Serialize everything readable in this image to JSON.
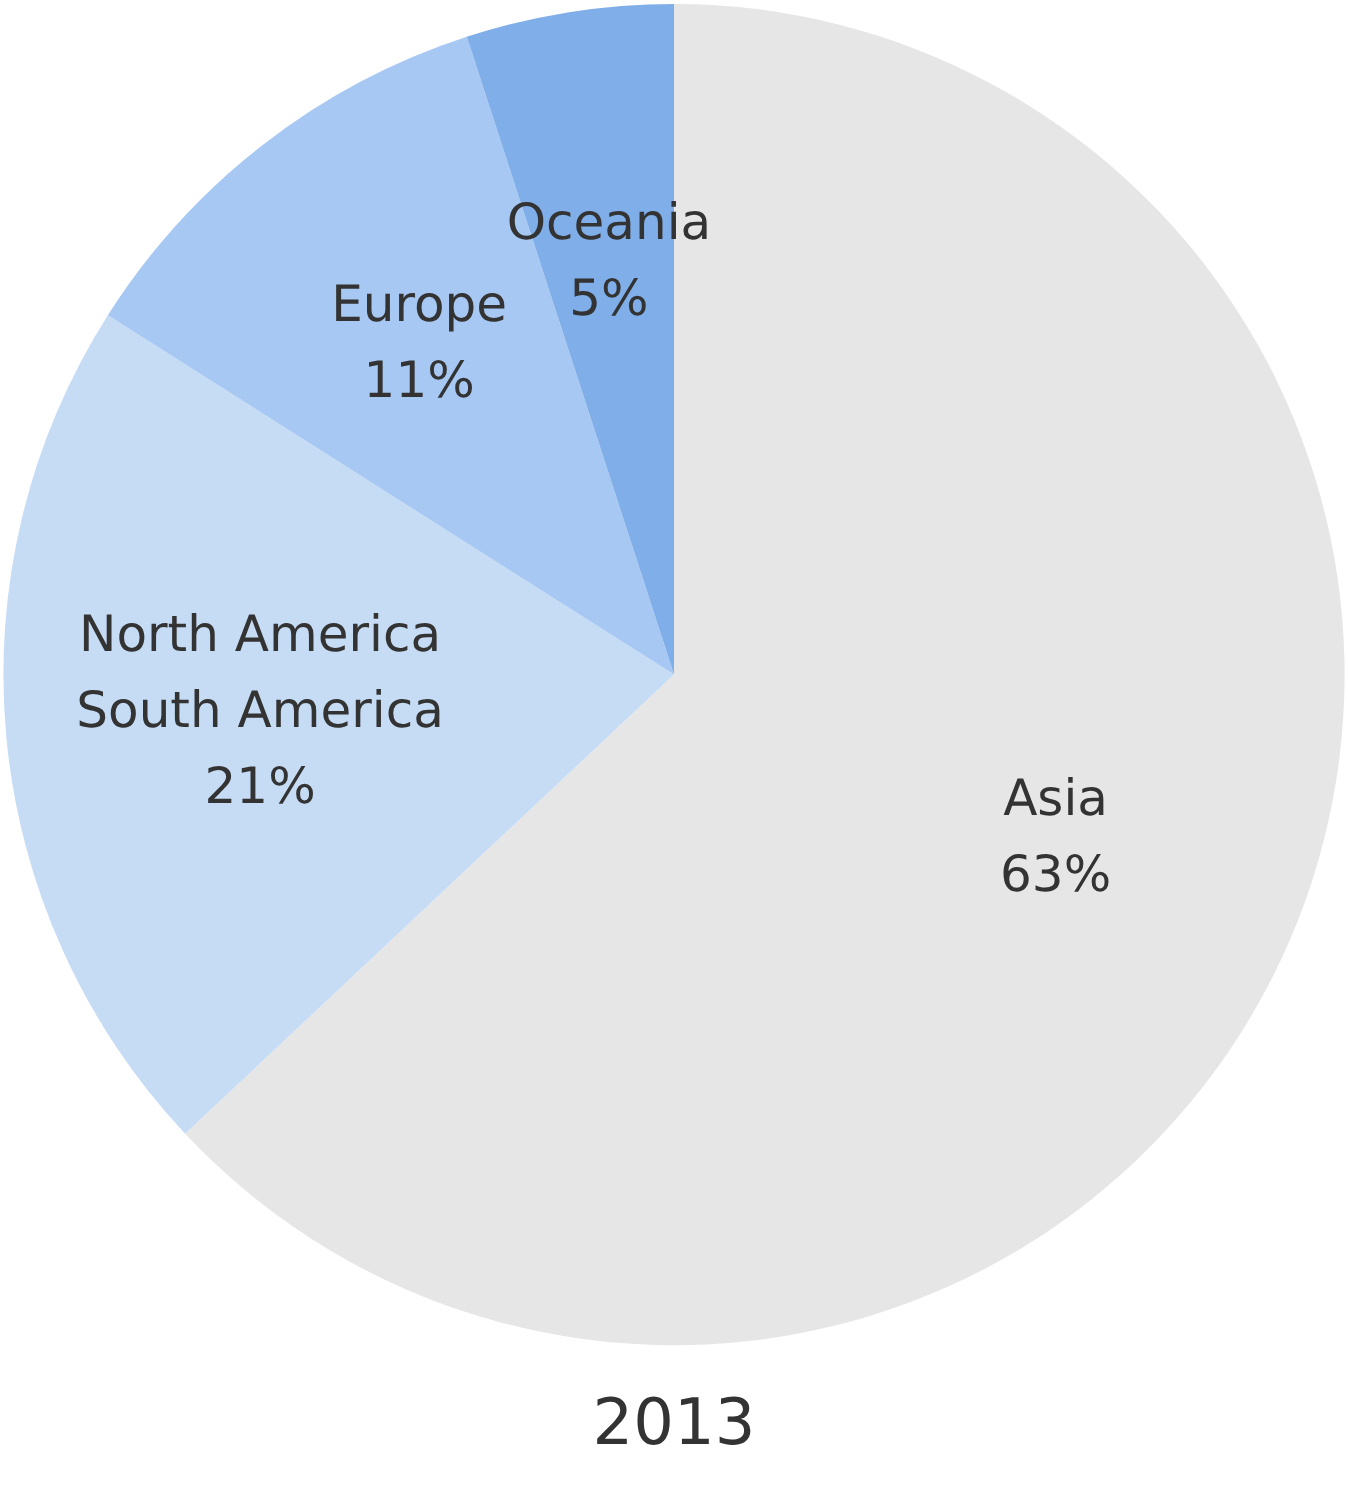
{
  "chart_data": {
    "type": "pie",
    "title": "2013",
    "categories": [
      "Asia",
      "North America\nSouth America",
      "Europe",
      "Oceania"
    ],
    "values": [
      63,
      21,
      11,
      5
    ],
    "value_labels": [
      "63%",
      "21%",
      "11%",
      "5%"
    ],
    "colors": [
      "#e6e6e6",
      "#c6dcf5",
      "#a7c8f2",
      "#80aee8"
    ],
    "legend": false
  }
}
